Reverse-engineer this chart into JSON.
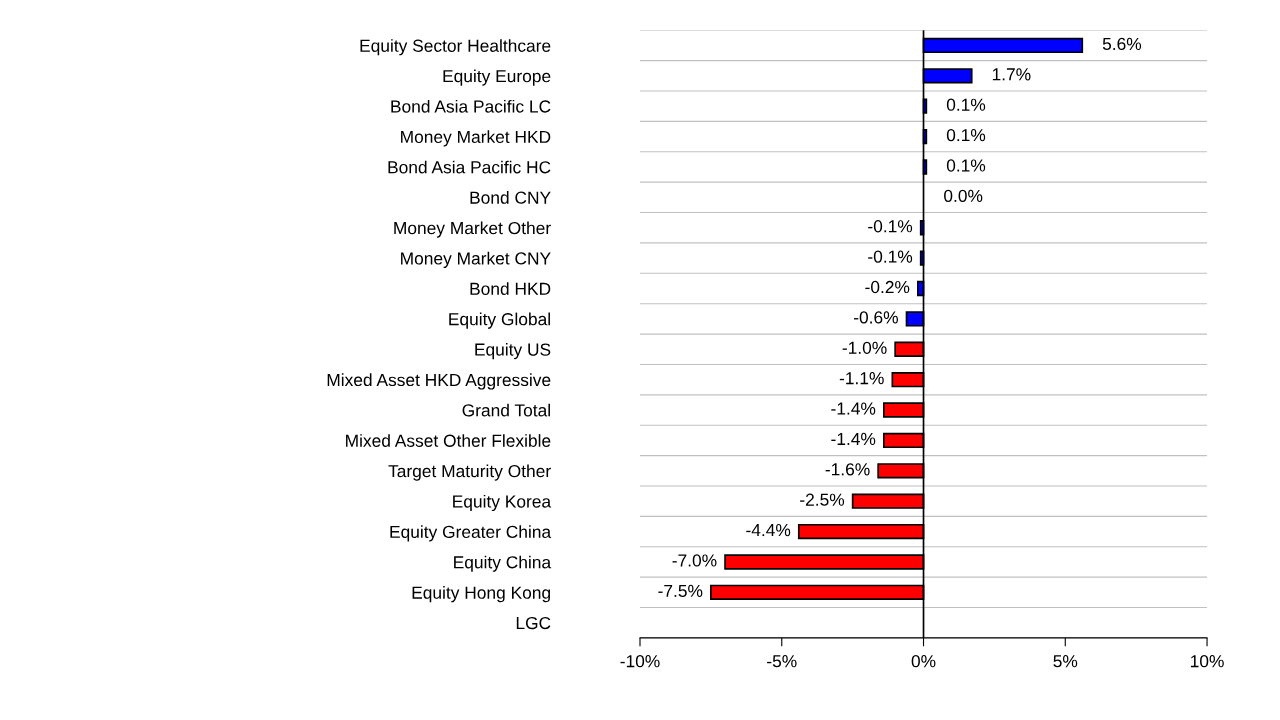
{
  "chart_data": {
    "type": "bar",
    "orientation": "horizontal",
    "categories": [
      "Equity Sector Healthcare",
      "Equity Europe",
      "Bond Asia Pacific LC",
      "Money Market HKD",
      "Bond Asia Pacific HC",
      "Bond CNY",
      "Money Market Other",
      "Money Market CNY",
      "Bond HKD",
      "Equity Global",
      "Equity US",
      "Mixed Asset HKD Aggressive",
      "Grand Total",
      "Mixed Asset Other Flexible",
      "Target Maturity Other",
      "Equity Korea",
      "Equity Greater China",
      "Equity China",
      "Equity Hong Kong",
      "LGC"
    ],
    "values": [
      5.6,
      1.7,
      0.1,
      0.1,
      0.1,
      0.0,
      -0.1,
      -0.1,
      -0.2,
      -0.6,
      -1.0,
      -1.1,
      -1.4,
      -1.4,
      -1.6,
      -2.5,
      -4.4,
      -7.0,
      -7.5,
      null
    ],
    "value_labels": [
      "5.6%",
      "1.7%",
      "0.1%",
      "0.1%",
      "0.1%",
      "0.0%",
      "-0.1%",
      "-0.1%",
      "-0.2%",
      "-0.6%",
      "-1.0%",
      "-1.1%",
      "-1.4%",
      "-1.4%",
      "-1.6%",
      "-2.5%",
      "-4.4%",
      "-7.0%",
      "-7.5%",
      null
    ],
    "colors": [
      "#0000ff",
      "#0000ff",
      "#0000ff",
      "#0000ff",
      "#0000ff",
      "#0000ff",
      "#0000ff",
      "#0000ff",
      "#0000ff",
      "#0000ff",
      "#ff0000",
      "#ff0000",
      "#ff0000",
      "#ff0000",
      "#ff0000",
      "#ff0000",
      "#ff0000",
      "#ff0000",
      "#ff0000",
      "#ff0000"
    ],
    "xlim": [
      -10,
      10
    ],
    "xticks": [
      {
        "value": -10,
        "label": "-10%"
      },
      {
        "value": -5,
        "label": "-5%"
      },
      {
        "value": 0,
        "label": "0%"
      },
      {
        "value": 5,
        "label": "5%"
      },
      {
        "value": 10,
        "label": "10%"
      }
    ],
    "grid": "y"
  }
}
